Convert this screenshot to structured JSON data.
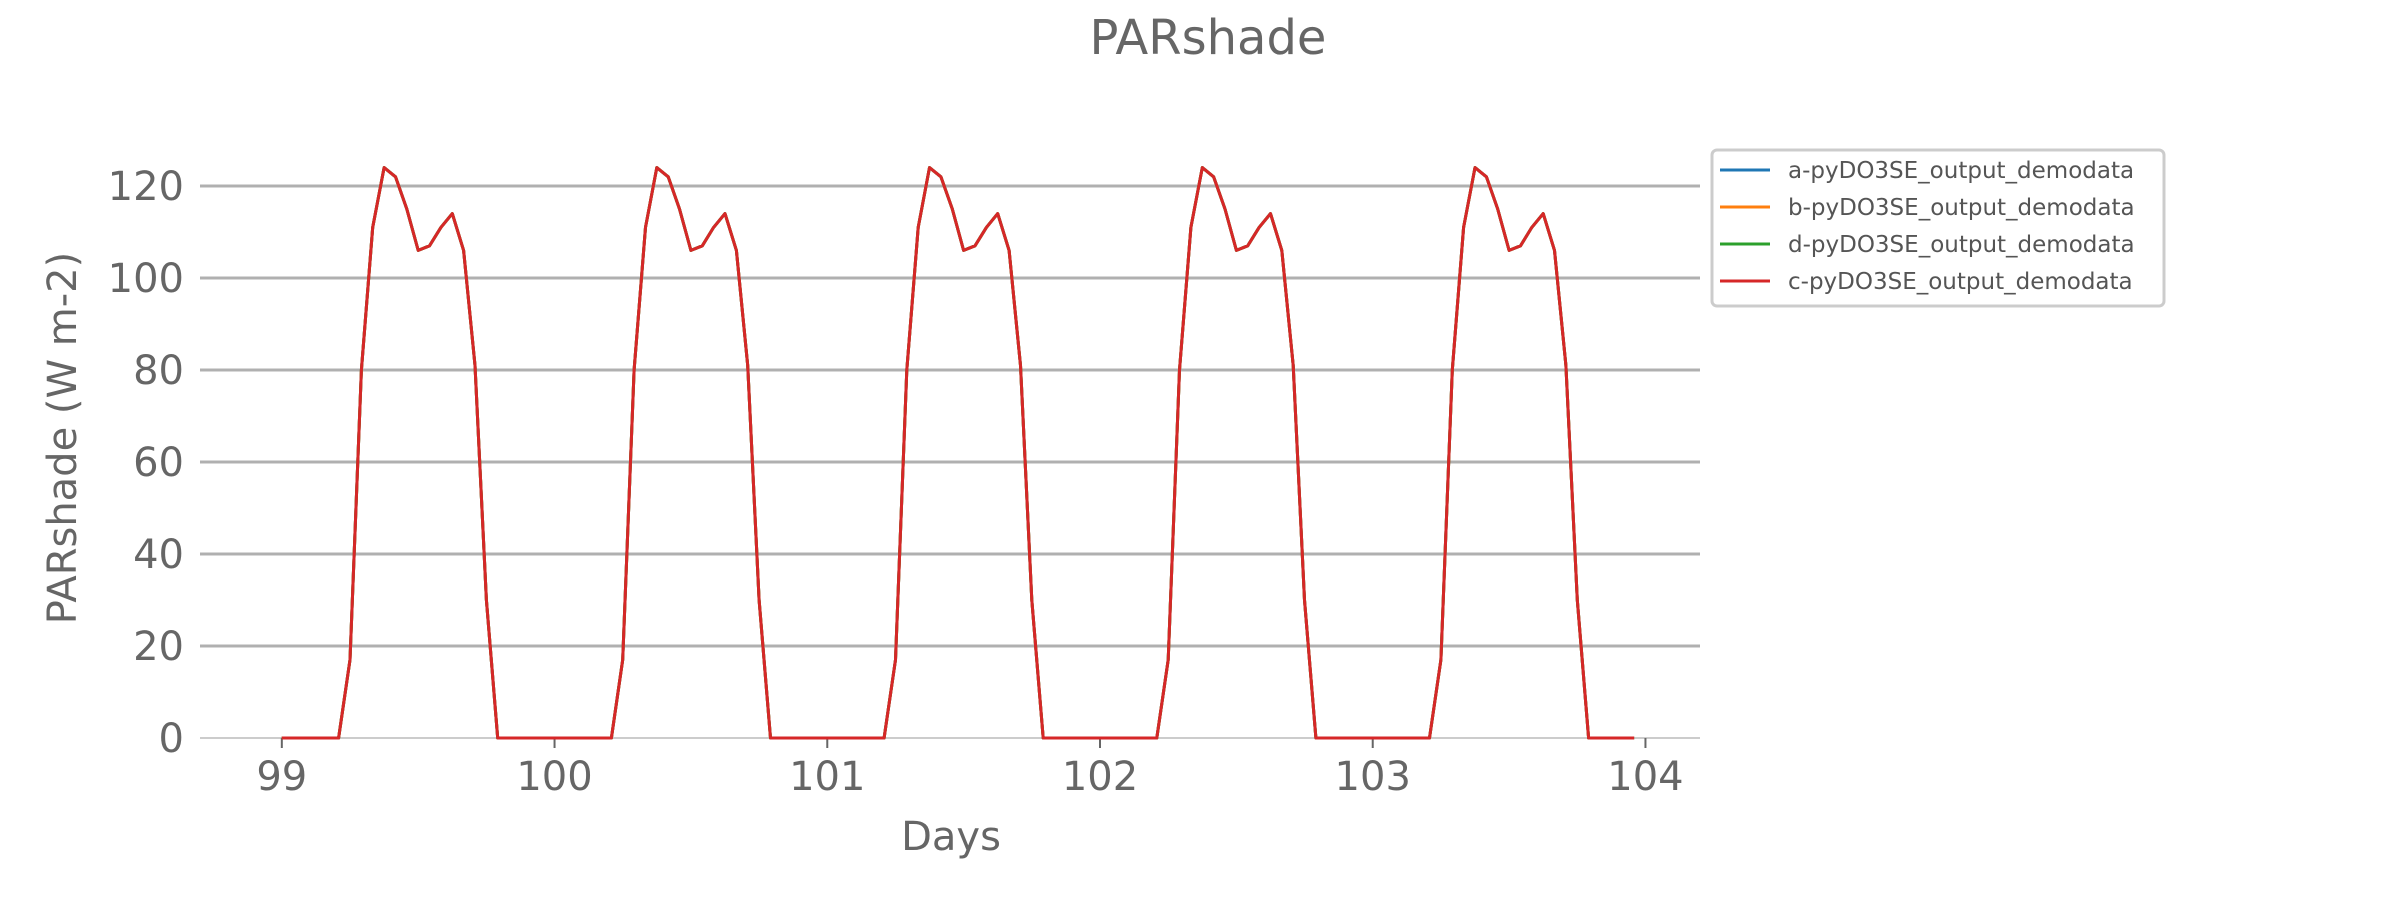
{
  "chart_data": {
    "type": "line",
    "title": "PARshade",
    "xlabel": "Days",
    "ylabel": "PARshade (W m-2)",
    "xlim": [
      98.7,
      104.2
    ],
    "ylim": [
      0,
      130
    ],
    "xticks": [
      99,
      100,
      101,
      102,
      103,
      104
    ],
    "yticks": [
      0,
      20,
      40,
      60,
      80,
      100,
      120
    ],
    "grid": "horizontal",
    "legend": "outside-right-top",
    "series": [
      {
        "name": "a-pyDO3SE_output_demodata",
        "color": "#1f77b4"
      },
      {
        "name": "b-pyDO3SE_output_demodata",
        "color": "#ff7f0e"
      },
      {
        "name": "d-pyDO3SE_output_demodata",
        "color": "#2ca02c"
      },
      {
        "name": "c-pyDO3SE_output_demodata",
        "color": "#d62728"
      }
    ],
    "daily_profile": {
      "hours": [
        0,
        1,
        2,
        3,
        4,
        5,
        6,
        7,
        8,
        9,
        10,
        11,
        12,
        13,
        14,
        15,
        16,
        17,
        18,
        19,
        20,
        21,
        22,
        23
      ],
      "values": [
        0,
        0,
        0,
        0,
        0,
        0,
        17,
        80,
        111,
        124,
        122,
        115,
        106,
        107,
        111,
        114,
        106,
        81,
        30,
        0,
        0,
        0,
        0,
        0
      ]
    },
    "days": [
      99,
      100,
      101,
      102,
      103
    ]
  }
}
